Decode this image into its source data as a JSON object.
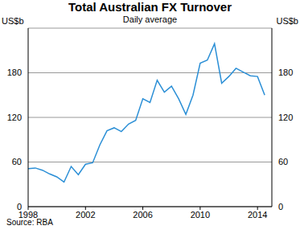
{
  "chart_data": {
    "type": "line",
    "title": "Total Australian FX Turnover",
    "subtitle": "Daily average",
    "ylabel": "US$b",
    "y2label": "US$b",
    "source": "Source: RBA",
    "x": [
      1998,
      1998.5,
      1999,
      1999.5,
      2000,
      2000.5,
      2001,
      2001.5,
      2002,
      2002.5,
      2003,
      2003.5,
      2004,
      2004.5,
      2005,
      2005.5,
      2006,
      2006.5,
      2007,
      2007.5,
      2008,
      2008.5,
      2009,
      2009.5,
      2010,
      2010.5,
      2011,
      2011.5,
      2012,
      2012.5,
      2013,
      2013.5,
      2014,
      2014.5
    ],
    "values": [
      51,
      52,
      49,
      44,
      40,
      33,
      54,
      43,
      57,
      59,
      83,
      102,
      106,
      101,
      111,
      116,
      145,
      140,
      170,
      154,
      162,
      145,
      124,
      150,
      193,
      197,
      219,
      166,
      175,
      186,
      181,
      176,
      175,
      150
    ],
    "color": "#2b8fd6",
    "xlim": [
      1998,
      2015
    ],
    "xticks": [
      1998,
      2002,
      2006,
      2010,
      2014
    ],
    "ylim": [
      0,
      240
    ],
    "yticks": [
      0,
      60,
      120,
      180
    ],
    "y2lim": [
      0,
      240
    ],
    "y2ticks": [
      0,
      60,
      120,
      180
    ],
    "grid": true
  }
}
